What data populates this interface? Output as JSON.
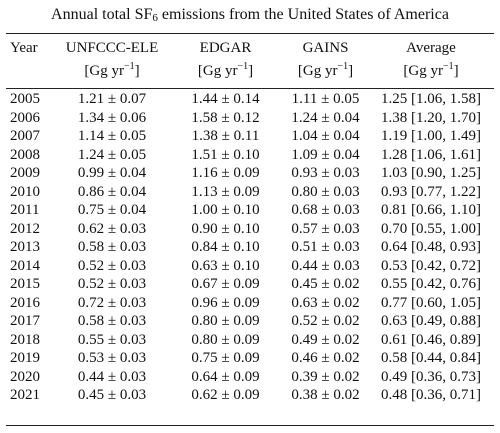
{
  "caption": {
    "prefix": "Annual total SF",
    "subscript": "6",
    "suffix": " emissions from the United States of America"
  },
  "columns": [
    {
      "label": "Year",
      "unit": ""
    },
    {
      "label": "UNFCCC-ELE",
      "unit": "[Gg yr",
      "unit_exp": "−1",
      "unit_end": "]"
    },
    {
      "label": "EDGAR",
      "unit": "[Gg yr",
      "unit_exp": "−1",
      "unit_end": "]"
    },
    {
      "label": "GAINS",
      "unit": "[Gg yr",
      "unit_exp": "−1",
      "unit_end": "]"
    },
    {
      "label": "Average",
      "unit": "[Gg yr",
      "unit_exp": "−1",
      "unit_end": "]"
    }
  ],
  "rows": [
    [
      "2005",
      "1.21 ± 0.07",
      "1.44 ± 0.14",
      "1.11 ± 0.05",
      "1.25 [1.06, 1.58]"
    ],
    [
      "2006",
      "1.34 ± 0.06",
      "1.58 ± 0.12",
      "1.24 ± 0.04",
      "1.38 [1.20, 1.70]"
    ],
    [
      "2007",
      "1.14 ± 0.05",
      "1.38 ± 0.11",
      "1.04 ± 0.04",
      "1.19 [1.00, 1.49]"
    ],
    [
      "2008",
      "1.24 ± 0.05",
      "1.51 ± 0.10",
      "1.09 ± 0.04",
      "1.28 [1.06, 1.61]"
    ],
    [
      "2009",
      "0.99 ± 0.04",
      "1.16 ± 0.09",
      "0.93 ± 0.03",
      "1.03 [0.90, 1.25]"
    ],
    [
      "2010",
      "0.86 ± 0.04",
      "1.13 ± 0.09",
      "0.80 ± 0.03",
      "0.93 [0.77, 1.22]"
    ],
    [
      "2011",
      "0.75 ± 0.04",
      "1.00 ± 0.10",
      "0.68 ± 0.03",
      "0.81 [0.66, 1.10]"
    ],
    [
      "2012",
      "0.62 ± 0.03",
      "0.90 ± 0.10",
      "0.57 ± 0.03",
      "0.70 [0.55, 1.00]"
    ],
    [
      "2013",
      "0.58 ± 0.03",
      "0.84 ± 0.10",
      "0.51 ± 0.03",
      "0.64 [0.48, 0.93]"
    ],
    [
      "2014",
      "0.52 ± 0.03",
      "0.63 ± 0.10",
      "0.44 ± 0.03",
      "0.53 [0.42, 0.72]"
    ],
    [
      "2015",
      "0.52 ± 0.03",
      "0.67 ± 0.09",
      "0.45 ± 0.02",
      "0.55 [0.42, 0.76]"
    ],
    [
      "2016",
      "0.72 ± 0.03",
      "0.96 ± 0.09",
      "0.63 ± 0.02",
      "0.77 [0.60, 1.05]"
    ],
    [
      "2017",
      "0.58 ± 0.03",
      "0.80 ± 0.09",
      "0.52 ± 0.02",
      "0.63 [0.49, 0.88]"
    ],
    [
      "2018",
      "0.55 ± 0.03",
      "0.80 ± 0.09",
      "0.49 ± 0.02",
      "0.61 [0.46, 0.89]"
    ],
    [
      "2019",
      "0.53 ± 0.03",
      "0.75 ± 0.09",
      "0.46 ± 0.02",
      "0.58 [0.44, 0.84]"
    ],
    [
      "2020",
      "0.44 ± 0.03",
      "0.64 ± 0.09",
      "0.39 ± 0.02",
      "0.49 [0.36, 0.73]"
    ],
    [
      "2021",
      "0.45 ± 0.03",
      "0.62 ± 0.09",
      "0.38 ± 0.02",
      "0.48 [0.36, 0.71]"
    ]
  ]
}
